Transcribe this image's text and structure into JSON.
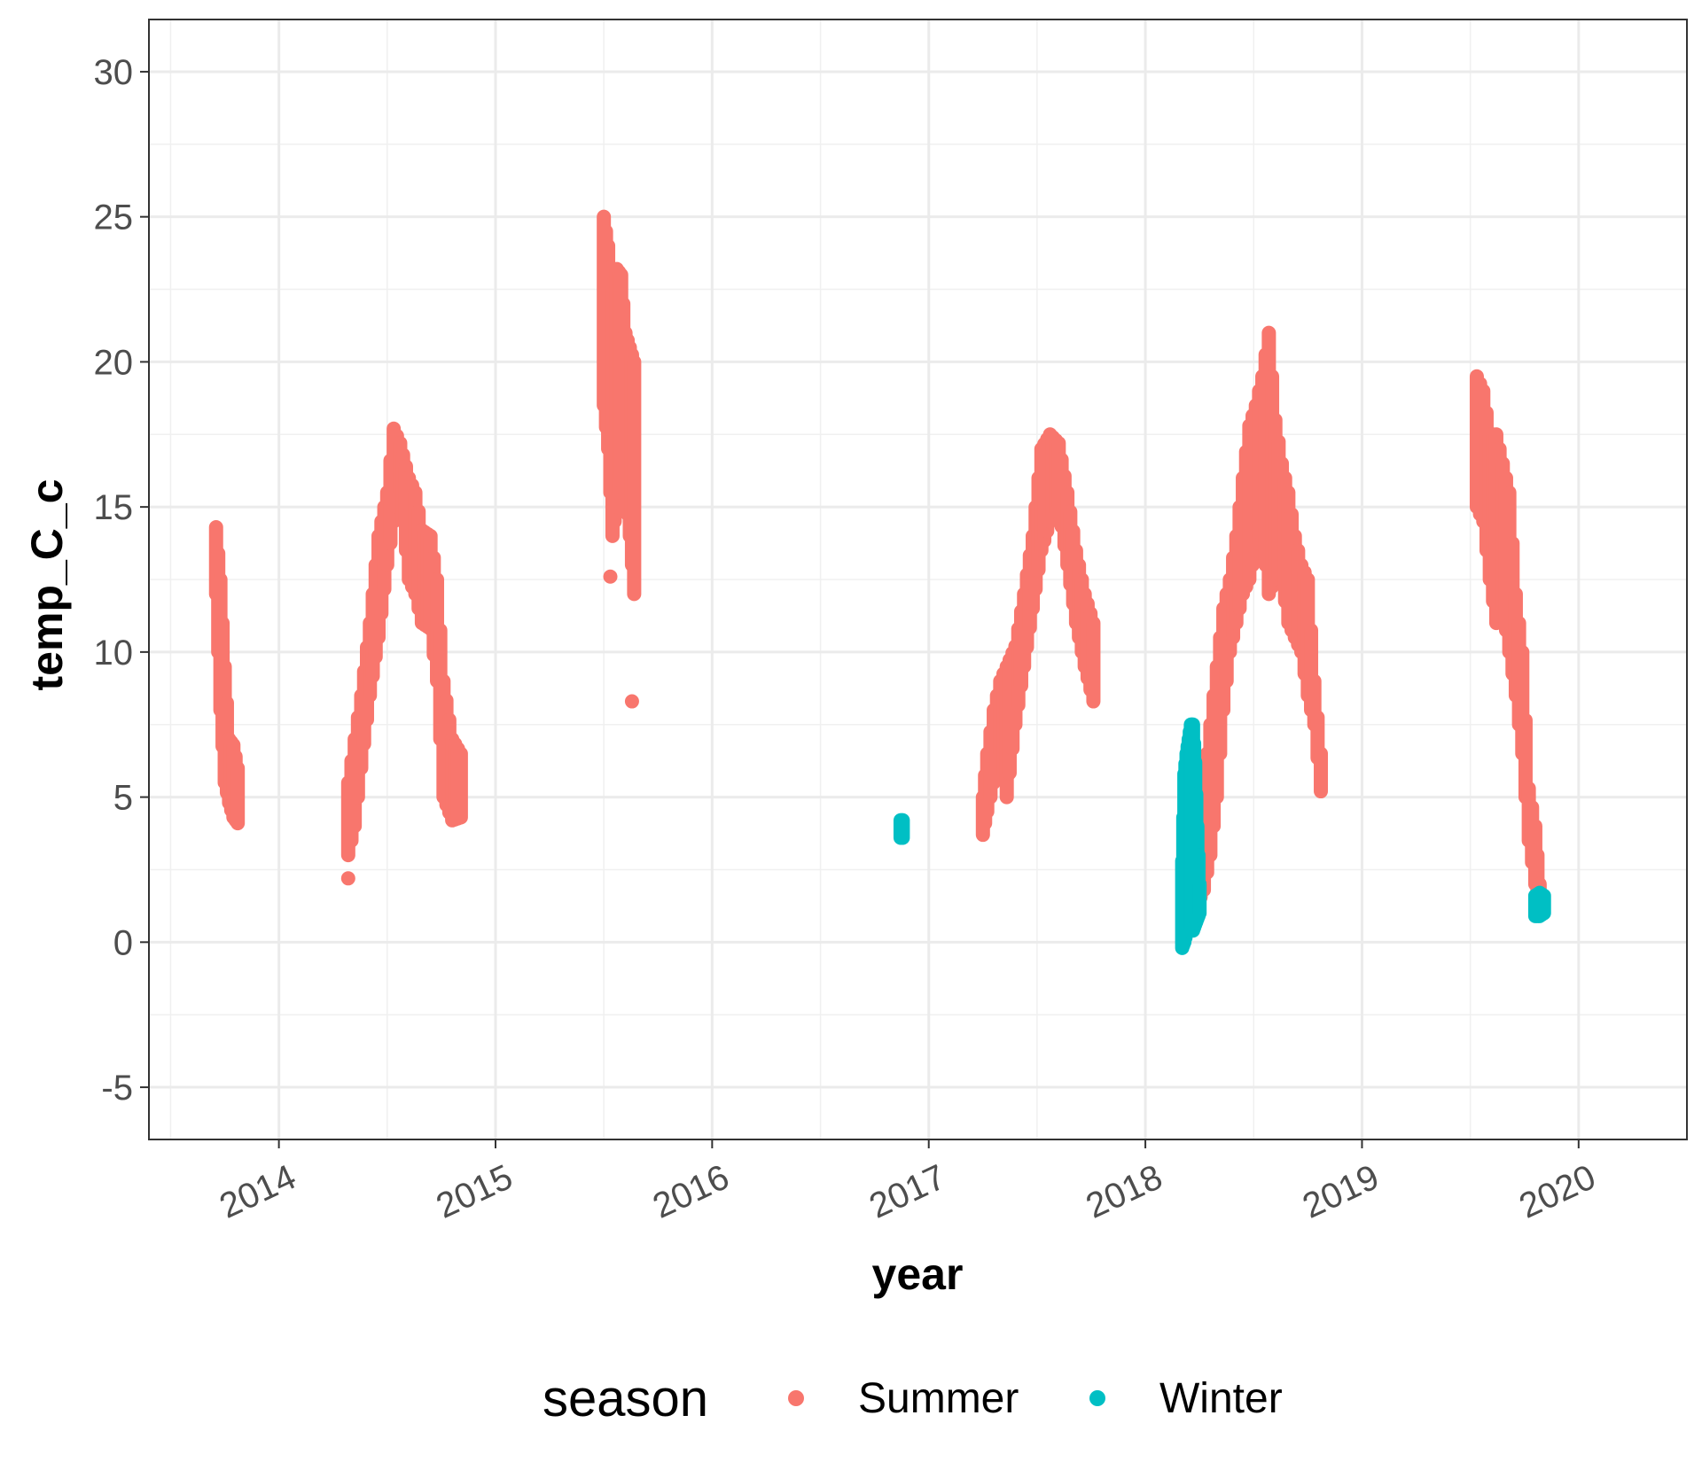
{
  "chart_data": {
    "type": "scatter",
    "xlabel": "year",
    "ylabel": "temp_C_c",
    "xlim": [
      2013.4,
      2020.5
    ],
    "ylim": [
      -6.8,
      31.8
    ],
    "x_ticks": [
      2014,
      2015,
      2016,
      2017,
      2018,
      2019,
      2020
    ],
    "x_tick_labels": [
      "2014",
      "2015",
      "2016",
      "2017",
      "2018",
      "2019",
      "2020"
    ],
    "y_ticks": [
      -5,
      0,
      5,
      10,
      15,
      20,
      25,
      30
    ],
    "y_tick_labels": [
      "-5",
      "0",
      "5",
      "10",
      "15",
      "20",
      "25",
      "30"
    ],
    "grid": true,
    "legend": {
      "title": "season",
      "position": "bottom"
    },
    "series": [
      {
        "name": "Summer",
        "color": "#F8766D",
        "segments": [
          {
            "x": [
              2013.71,
              2013.73,
              2013.75,
              2013.77,
              2013.79,
              2013.81
            ],
            "y_low": [
              12.0,
              8.0,
              5.5,
              4.8,
              4.3,
              4.1
            ],
            "y_high": [
              14.3,
              12.5,
              9.5,
              7.0,
              6.8,
              6.0
            ]
          },
          {
            "x": [
              2014.32,
              2014.35,
              2014.38,
              2014.42,
              2014.46,
              2014.5,
              2014.53,
              2014.56,
              2014.6,
              2014.63,
              2014.66,
              2014.7,
              2014.73,
              2014.76,
              2014.8,
              2014.84
            ],
            "y_low": [
              3.0,
              4.0,
              6.0,
              8.5,
              10.5,
              13.0,
              14.5,
              15.5,
              12.5,
              12.0,
              11.0,
              10.8,
              9.0,
              5.0,
              4.2,
              4.3
            ],
            "y_high": [
              5.5,
              7.0,
              8.5,
              11.0,
              14.0,
              15.5,
              17.7,
              17.2,
              16.0,
              15.5,
              14.2,
              14.0,
              12.5,
              9.0,
              7.0,
              6.5
            ]
          },
          {
            "x": [
              2015.5,
              2015.52,
              2015.54,
              2015.56,
              2015.58,
              2015.6,
              2015.62,
              2015.64
            ],
            "y_low": [
              18.5,
              17.0,
              14.0,
              15.0,
              16.0,
              15.5,
              14.0,
              12.0
            ],
            "y_high": [
              25.0,
              24.0,
              22.5,
              23.2,
              23.0,
              21.0,
              20.5,
              20.0
            ]
          },
          {
            "x": [
              2017.25,
              2017.27,
              2017.3,
              2017.33,
              2017.36,
              2017.4,
              2017.44,
              2017.48,
              2017.52,
              2017.56,
              2017.6,
              2017.64,
              2017.68,
              2017.72,
              2017.76
            ],
            "y_low": [
              3.7,
              4.5,
              5.5,
              6.5,
              5.0,
              7.5,
              9.5,
              11.5,
              13.5,
              14.5,
              15.0,
              13.0,
              11.0,
              9.5,
              8.3
            ],
            "y_high": [
              5.0,
              6.5,
              8.0,
              9.0,
              9.5,
              10.2,
              12.0,
              14.0,
              17.0,
              17.5,
              17.2,
              15.5,
              13.5,
              12.0,
              11.0
            ]
          },
          {
            "x": [
              2018.24,
              2018.27,
              2018.3,
              2018.33,
              2018.36,
              2018.39,
              2018.42,
              2018.45,
              2018.48,
              2018.51,
              2018.54,
              2018.57,
              2018.6,
              2018.63,
              2018.66,
              2018.69,
              2018.72,
              2018.75,
              2018.78,
              2018.81
            ],
            "y_low": [
              1.3,
              1.8,
              3.0,
              5.0,
              8.0,
              10.0,
              11.0,
              12.0,
              12.5,
              13.5,
              14.0,
              12.0,
              12.5,
              12.5,
              11.0,
              10.5,
              10.0,
              8.5,
              7.5,
              5.2
            ],
            "y_high": [
              3.0,
              5.5,
              7.5,
              9.5,
              11.5,
              12.5,
              14.0,
              16.0,
              17.8,
              18.5,
              19.5,
              21.0,
              18.0,
              16.5,
              15.5,
              14.0,
              13.0,
              12.5,
              9.0,
              6.5
            ]
          },
          {
            "x": [
              2019.53,
              2019.56,
              2019.59,
              2019.62,
              2019.65,
              2019.68,
              2019.71,
              2019.74,
              2019.77,
              2019.8,
              2019.82
            ],
            "y_low": [
              15.0,
              14.5,
              12.5,
              11.0,
              11.5,
              10.0,
              8.5,
              6.5,
              3.5,
              2.0,
              1.0
            ],
            "y_high": [
              19.5,
              19.0,
              17.5,
              17.5,
              16.5,
              15.5,
              12.0,
              10.0,
              5.3,
              4.0,
              2.0
            ]
          }
        ],
        "isolated_points": [
          {
            "x": 2014.32,
            "y": 2.2
          },
          {
            "x": 2015.63,
            "y": 8.3
          },
          {
            "x": 2015.53,
            "y": 12.6
          }
        ]
      },
      {
        "name": "Winter",
        "color": "#00BFC4",
        "segments": [
          {
            "x": [
              2016.87,
              2016.88
            ],
            "y_low": [
              3.6,
              3.6
            ],
            "y_high": [
              4.2,
              4.2
            ]
          },
          {
            "x": [
              2018.17,
              2018.18,
              2018.19,
              2018.2,
              2018.21,
              2018.22,
              2018.23,
              2018.24,
              2018.25
            ],
            "y_low": [
              -0.2,
              0.0,
              0.3,
              0.5,
              0.5,
              0.4,
              0.6,
              0.8,
              1.0
            ],
            "y_high": [
              2.8,
              5.8,
              6.5,
              7.0,
              7.5,
              7.5,
              6.2,
              4.0,
              2.0
            ]
          },
          {
            "x": [
              2019.8,
              2019.82,
              2019.84
            ],
            "y_low": [
              0.9,
              0.9,
              1.0
            ],
            "y_high": [
              1.6,
              1.7,
              1.6
            ]
          }
        ],
        "isolated_points": []
      }
    ]
  }
}
